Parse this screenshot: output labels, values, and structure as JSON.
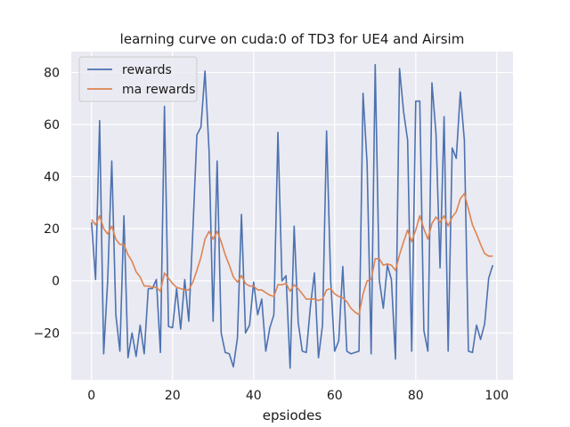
{
  "chart_data": {
    "type": "line",
    "title": "learning curve on cuda:0 of TD3 for UE4 and Airsim",
    "xlabel": "epsiodes",
    "ylabel": "",
    "xlim": [
      -5,
      104
    ],
    "ylim": [
      -38,
      88
    ],
    "x_ticks": [
      0,
      20,
      40,
      60,
      80,
      100
    ],
    "y_ticks": [
      -20,
      0,
      20,
      40,
      60,
      80
    ],
    "x_tick_labels": [
      "0",
      "20",
      "40",
      "60",
      "80",
      "100"
    ],
    "y_tick_labels": [
      "−20",
      "0",
      "20",
      "40",
      "60",
      "80"
    ],
    "grid": true,
    "legend_position": "top-left",
    "series": [
      {
        "name": "rewards",
        "color": "#4c72b0",
        "values": [
          22.5,
          0.5,
          61.5,
          -28,
          0.5,
          46,
          -13,
          -27,
          25,
          -29.5,
          -20,
          -29,
          -17,
          -28,
          -3,
          -3,
          0.5,
          -27.5,
          67,
          -17.5,
          -18,
          -3,
          -18.5,
          0.5,
          -15.5,
          19,
          56,
          59,
          80.5,
          50,
          -15.5,
          46,
          -20,
          -27.5,
          -28,
          -33,
          -22,
          25.5,
          -20,
          -17,
          -0.5,
          -13,
          -7,
          -27,
          -18,
          -13,
          57,
          0,
          2,
          -33.5,
          21,
          -16,
          -27,
          -27.5,
          -10,
          3,
          -29.5,
          -17,
          57.5,
          0.5,
          -27,
          -23,
          5.5,
          -27,
          -28,
          -27.5,
          -27,
          72,
          45,
          -28,
          83,
          0.5,
          -10.5,
          6,
          0.5,
          -30,
          81.5,
          65,
          54,
          -27,
          69,
          69,
          -19,
          -27,
          76,
          56.5,
          5,
          63,
          -27,
          51,
          47,
          72.5,
          54,
          -27,
          -27.5,
          -17,
          -22.5,
          -16.5,
          1,
          6
        ]
      },
      {
        "name": "ma rewards",
        "color": "#dd8452",
        "values": [
          23.5,
          21.5,
          25,
          20,
          18,
          21,
          16,
          14,
          14,
          10,
          7.5,
          3.5,
          1.5,
          -2,
          -2,
          -2.5,
          -2.5,
          -4,
          3,
          1,
          -1,
          -2.5,
          -3,
          -3.5,
          -3.5,
          -0.5,
          4,
          9,
          16,
          19,
          16,
          19,
          15,
          10,
          6,
          1.5,
          -0.5,
          2,
          -1,
          -2,
          -2,
          -3.5,
          -3.5,
          -4.5,
          -5.5,
          -6,
          -1.5,
          -1.5,
          -1,
          -4,
          -1.5,
          -3,
          -5,
          -7,
          -7,
          -7,
          -7.5,
          -7,
          -3.5,
          -3,
          -5,
          -6,
          -6.5,
          -8,
          -10.5,
          -12,
          -13,
          -5,
          0,
          0.5,
          8.5,
          8.5,
          6,
          6.5,
          6,
          4,
          10,
          15,
          19.5,
          15,
          19.5,
          25,
          20,
          16,
          22,
          24.5,
          22.5,
          25,
          21,
          24.5,
          26.5,
          31.5,
          33.5,
          27.5,
          21.5,
          18,
          14,
          10.5,
          9.5,
          9.5
        ]
      }
    ]
  }
}
